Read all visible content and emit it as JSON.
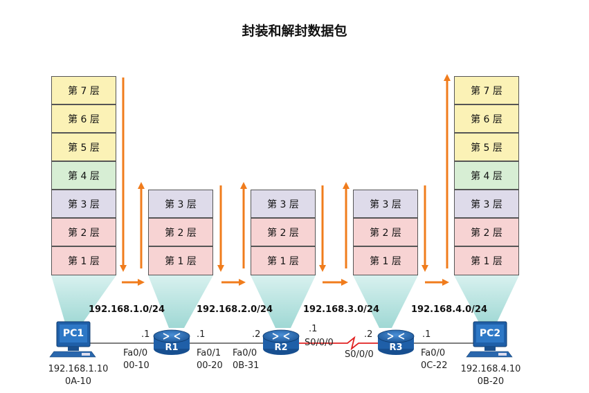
{
  "title": "封装和解封数据包",
  "stacks": {
    "pc1": [
      "第 7 层",
      "第 6 层",
      "第 5 层",
      "第 4 层",
      "第 3 层",
      "第 2 层",
      "第 1 层"
    ],
    "r1": [
      "第 3 层",
      "第 2 层",
      "第 1 层"
    ],
    "r2": [
      "第 3 层",
      "第 2 层",
      "第 1 层"
    ],
    "r3": [
      "第 3 层",
      "第 2 层",
      "第 1 层"
    ],
    "pc2": [
      "第 7 层",
      "第 6 层",
      "第 5 层",
      "第 4 层",
      "第 3 层",
      "第 2 层",
      "第 1 层"
    ]
  },
  "networks": [
    "192.168.1.0/24",
    "192.168.2.0/24",
    "192.168.3.0/24",
    "192.168.4.0/24"
  ],
  "devices": {
    "pc1": {
      "name": "PC1",
      "ip": "192.168.1.10",
      "mac": "0A-10"
    },
    "pc2": {
      "name": "PC2",
      "ip": "192.168.4.10",
      "mac": "0B-20"
    },
    "r1": {
      "name": "R1"
    },
    "r2": {
      "name": "R2"
    },
    "r3": {
      "name": "R3"
    }
  },
  "interfaces": {
    "r1_fa00": {
      "host": ".1",
      "name": "Fa0/0",
      "mac": "00-10"
    },
    "r1_fa01": {
      "host": ".1",
      "name": "Fa0/1",
      "mac": "00-20"
    },
    "r2_fa00": {
      "host": ".2",
      "name": "Fa0/0",
      "mac": "0B-31"
    },
    "r2_s000": {
      "host": ".1",
      "name": "S0/0/0"
    },
    "r3_s000": {
      "host": ".2",
      "name": "S0/0/0"
    },
    "r3_fa00": {
      "host": ".1",
      "name": "Fa0/0",
      "mac": "0C-22"
    }
  },
  "colors": {
    "arrow": "#f07c1c",
    "cable": "#555555",
    "serial": "#e02020",
    "router": "#1f5fa8",
    "pc": "#1f5fa8",
    "beam": "#bfe6e4"
  }
}
